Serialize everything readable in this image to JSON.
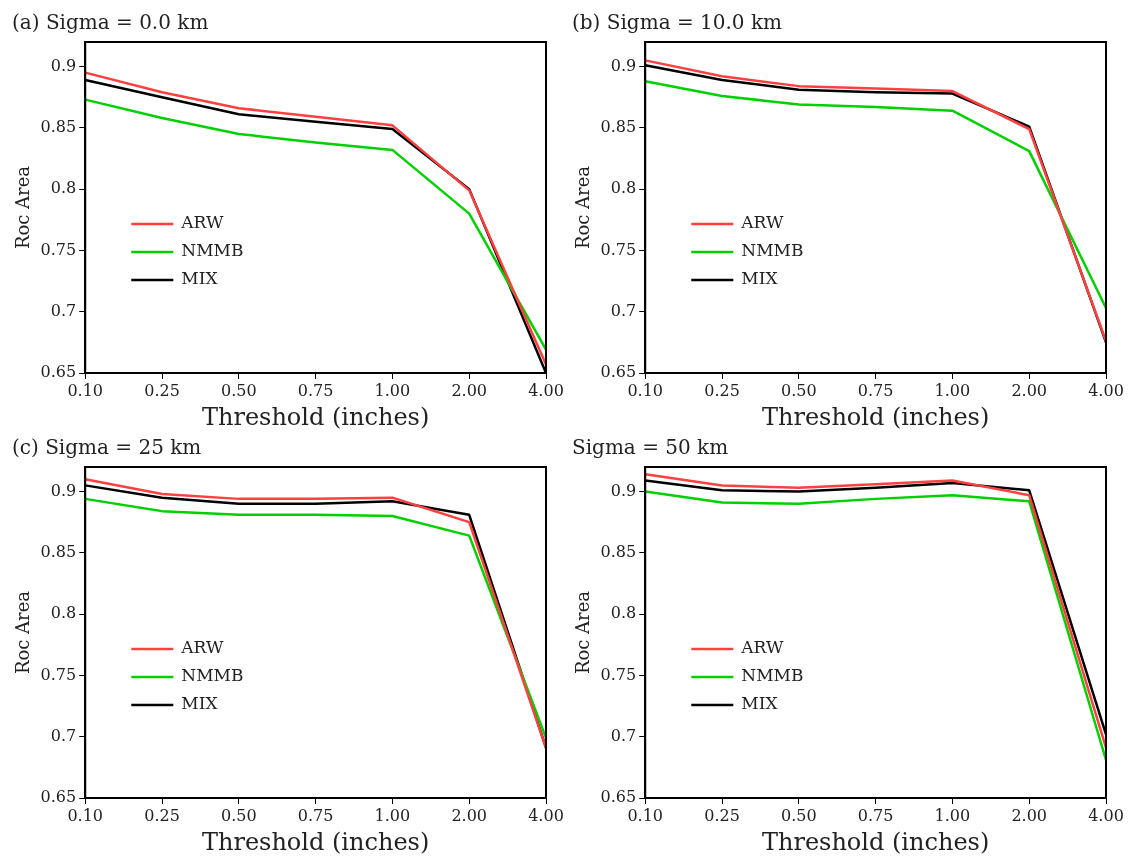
{
  "chart_data": [
    {
      "type": "line",
      "title": "(a) Sigma = 0.0 km",
      "xlabel": "Threshold (inches)",
      "ylabel": "Roc Area",
      "categories": [
        "0.10",
        "0.25",
        "0.50",
        "0.75",
        "1.00",
        "2.00",
        "4.00"
      ],
      "ylim": [
        0.65,
        0.92
      ],
      "yticks": [
        0.65,
        0.7,
        0.75,
        0.8,
        0.85,
        0.9
      ],
      "legend": "left",
      "grid": false,
      "series": [
        {
          "name": "ARW",
          "color": "#ff4040",
          "values": [
            0.895,
            0.879,
            0.866,
            0.859,
            0.852,
            0.799,
            0.657
          ]
        },
        {
          "name": "NMMB",
          "color": "#00d000",
          "values": [
            0.873,
            0.858,
            0.845,
            0.838,
            0.832,
            0.78,
            0.669
          ]
        },
        {
          "name": "MIX",
          "color": "#000000",
          "values": [
            0.889,
            0.875,
            0.861,
            0.855,
            0.849,
            0.8,
            0.65
          ]
        }
      ]
    },
    {
      "type": "line",
      "title": "(b) Sigma = 10.0 km",
      "xlabel": "Threshold (inches)",
      "ylabel": "Roc Area",
      "categories": [
        "0.10",
        "0.25",
        "0.50",
        "0.75",
        "1.00",
        "2.00",
        "4.00"
      ],
      "ylim": [
        0.65,
        0.92
      ],
      "yticks": [
        0.65,
        0.7,
        0.75,
        0.8,
        0.85,
        0.9
      ],
      "legend": "left",
      "grid": false,
      "series": [
        {
          "name": "ARW",
          "color": "#ff4040",
          "values": [
            0.905,
            0.892,
            0.884,
            0.882,
            0.88,
            0.849,
            0.676
          ]
        },
        {
          "name": "NMMB",
          "color": "#00d000",
          "values": [
            0.888,
            0.876,
            0.869,
            0.867,
            0.864,
            0.831,
            0.703
          ]
        },
        {
          "name": "MIX",
          "color": "#000000",
          "values": [
            0.901,
            0.889,
            0.881,
            0.879,
            0.878,
            0.851,
            0.675
          ]
        }
      ]
    },
    {
      "type": "line",
      "title": "(c) Sigma = 25 km",
      "xlabel": "Threshold (inches)",
      "ylabel": "Roc Area",
      "categories": [
        "0.10",
        "0.25",
        "0.50",
        "0.75",
        "1.00",
        "2.00",
        "4.00"
      ],
      "ylim": [
        0.65,
        0.92
      ],
      "yticks": [
        0.65,
        0.7,
        0.75,
        0.8,
        0.85,
        0.9
      ],
      "legend": "left",
      "grid": false,
      "series": [
        {
          "name": "ARW",
          "color": "#ff4040",
          "values": [
            0.91,
            0.898,
            0.894,
            0.894,
            0.895,
            0.875,
            0.691
          ]
        },
        {
          "name": "NMMB",
          "color": "#00d000",
          "values": [
            0.894,
            0.884,
            0.881,
            0.881,
            0.88,
            0.864,
            0.699
          ]
        },
        {
          "name": "MIX",
          "color": "#000000",
          "values": [
            0.905,
            0.895,
            0.89,
            0.89,
            0.892,
            0.881,
            0.691
          ]
        }
      ]
    },
    {
      "type": "line",
      "title": "Sigma = 50 km",
      "xlabel": "Threshold (inches)",
      "ylabel": "Roc Area",
      "categories": [
        "0.10",
        "0.25",
        "0.50",
        "0.75",
        "1.00",
        "2.00",
        "4.00"
      ],
      "ylim": [
        0.65,
        0.92
      ],
      "yticks": [
        0.65,
        0.7,
        0.75,
        0.8,
        0.85,
        0.9
      ],
      "legend": "left",
      "grid": false,
      "series": [
        {
          "name": "ARW",
          "color": "#ff4040",
          "values": [
            0.914,
            0.905,
            0.903,
            0.906,
            0.909,
            0.897,
            0.691
          ]
        },
        {
          "name": "NMMB",
          "color": "#00d000",
          "values": [
            0.9,
            0.891,
            0.89,
            0.894,
            0.897,
            0.892,
            0.681
          ]
        },
        {
          "name": "MIX",
          "color": "#000000",
          "values": [
            0.909,
            0.901,
            0.9,
            0.903,
            0.907,
            0.901,
            0.702
          ]
        }
      ]
    }
  ]
}
